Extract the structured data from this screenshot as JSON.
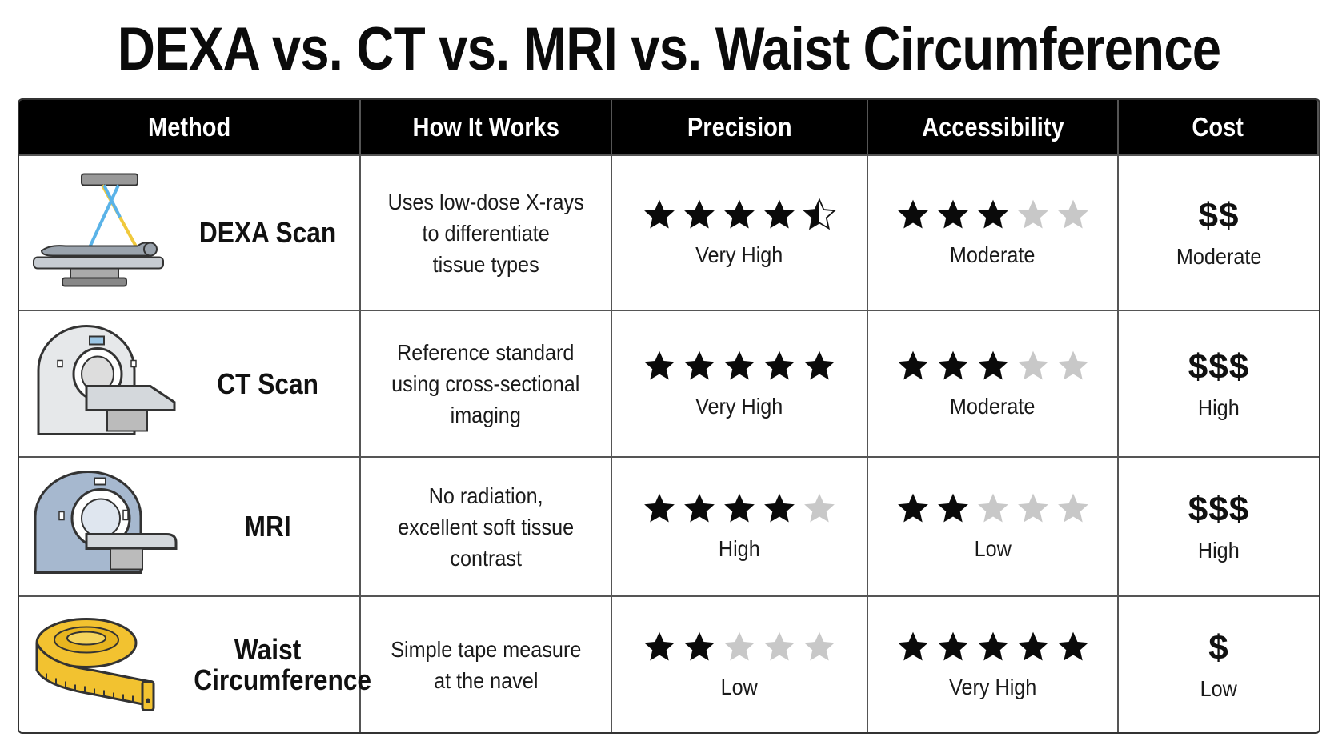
{
  "title": "DEXA vs. CT vs. MRI vs. Waist Circumference",
  "headers": {
    "method": "Method",
    "how": "How It Works",
    "precision": "Precision",
    "accessibility": "Accessibility",
    "cost": "Cost"
  },
  "colors": {
    "star_filled": "#0a0a0a",
    "star_empty": "#c8c8c8",
    "header_bg": "#000000"
  },
  "rows": [
    {
      "icon": "dexa-scanner-icon",
      "name_lines": [
        "DEXA Scan"
      ],
      "how_lines": [
        "Uses low-dose X-rays",
        "to differentiate",
        "tissue types"
      ],
      "precision_stars": 4.5,
      "precision_label": "Very High",
      "accessibility_stars": 3,
      "accessibility_label": "Moderate",
      "cost_symbol": "$$",
      "cost_label": "Moderate"
    },
    {
      "icon": "ct-scanner-icon",
      "name_lines": [
        "CT Scan"
      ],
      "how_lines": [
        "Reference standard",
        "using cross-sectional",
        "imaging"
      ],
      "precision_stars": 5,
      "precision_label": "Very High",
      "accessibility_stars": 3,
      "accessibility_label": "Moderate",
      "cost_symbol": "$$$",
      "cost_label": "High"
    },
    {
      "icon": "mri-scanner-icon",
      "name_lines": [
        "MRI"
      ],
      "how_lines": [
        "No radiation,",
        "excellent soft tissue",
        "contrast"
      ],
      "precision_stars": 4,
      "precision_label": "High",
      "accessibility_stars": 2,
      "accessibility_label": "Low",
      "cost_symbol": "$$$",
      "cost_label": "High"
    },
    {
      "icon": "tape-measure-icon",
      "name_lines": [
        "Waist",
        "Circumference"
      ],
      "how_lines": [
        "Simple tape measure",
        "at the navel"
      ],
      "precision_stars": 2,
      "precision_label": "Low",
      "accessibility_stars": 5,
      "accessibility_label": "Very High",
      "cost_symbol": "$",
      "cost_label": "Low"
    }
  ]
}
